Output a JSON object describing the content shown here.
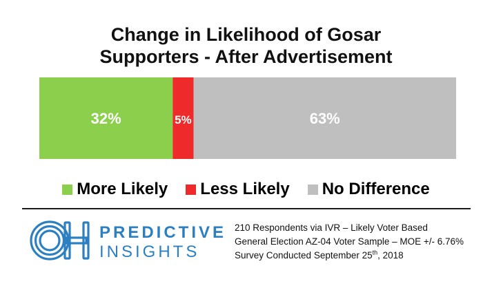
{
  "chart_data": {
    "type": "bar",
    "orientation": "horizontal-stacked",
    "title_lines": [
      "Change in Likelihood of Gosar",
      "Supporters - After Advertisement"
    ],
    "categories": [
      "Change in Likelihood"
    ],
    "series": [
      {
        "name": "More Likely",
        "values": [
          32
        ],
        "label": "32%",
        "color": "#8ccf4d"
      },
      {
        "name": "Less Likely",
        "values": [
          5
        ],
        "label": "5%",
        "color": "#ee2a2a"
      },
      {
        "name": "No Difference",
        "values": [
          63
        ],
        "label": "63%",
        "color": "#bfbfbf"
      }
    ],
    "xlim": [
      0,
      100
    ],
    "grid": false,
    "legend_position": "bottom"
  },
  "footer": {
    "brand_top": "PREDICTIVE",
    "brand_bottom": "INSIGHTS",
    "logo_letters": "OH",
    "brand_color": "#2c7fc0",
    "notes": {
      "line1": "210 Respondents via IVR – Likely Voter Based",
      "line2": "General Election AZ-04 Voter Sample – MOE +/- 6.76%",
      "line3_prefix": "Survey Conducted September 25",
      "line3_sup": "th",
      "line3_suffix": ", 2018"
    }
  }
}
